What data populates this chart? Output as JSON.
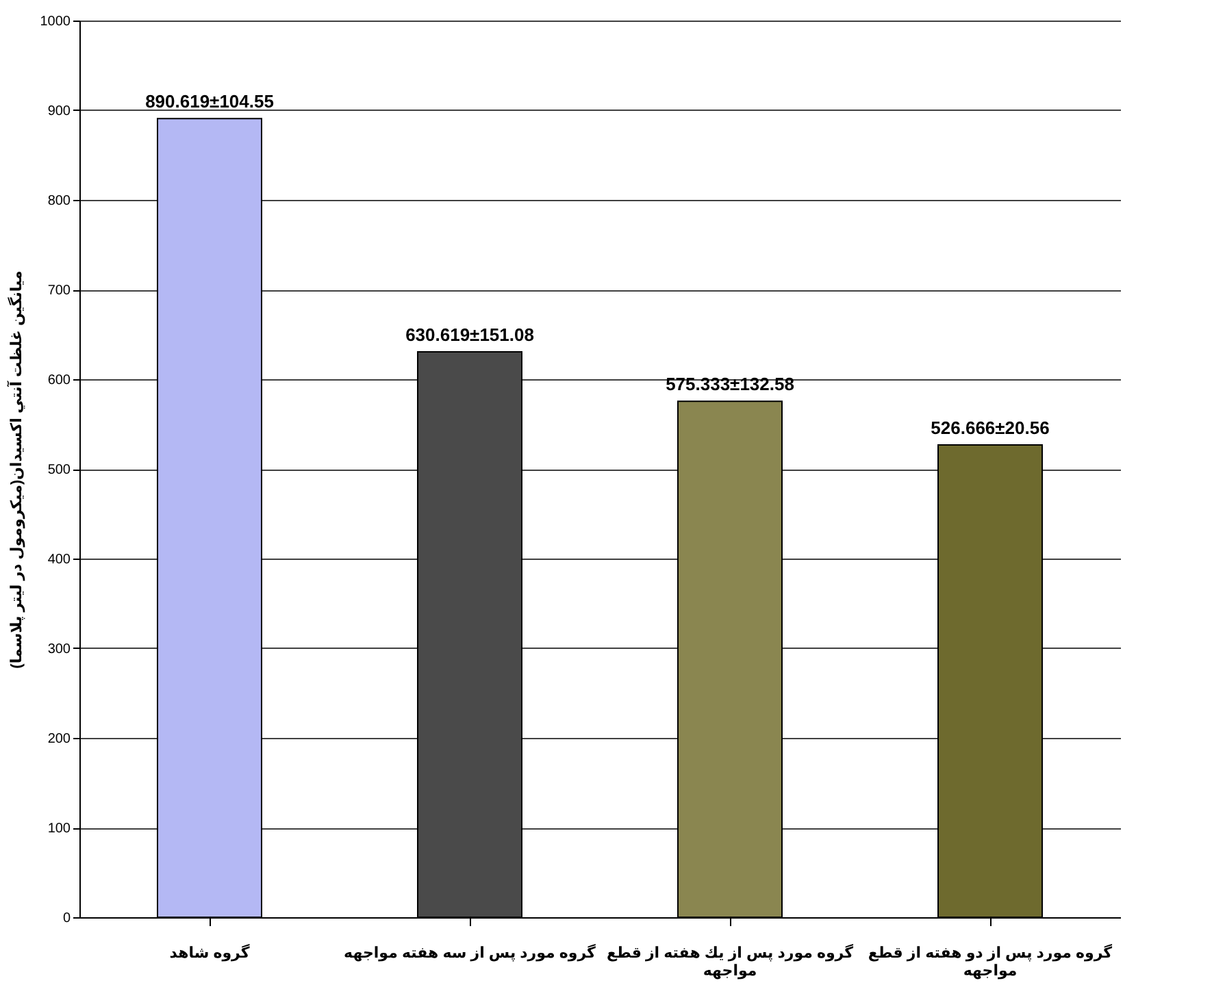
{
  "chart_data": {
    "type": "bar",
    "ylabel": "میانگین غلظت آنتي اکسيدان(میکرومول در لیتر پلاسما)",
    "categories": [
      "گروه شاهد",
      "گروه مورد پس از سه هفته مواجهه",
      "گروه مورد پس از يك هفته از قطع مواجهه",
      "گروه مورد پس از دو هفته از قطع مواجهه"
    ],
    "values": [
      890.619,
      630.619,
      575.333,
      526.666
    ],
    "value_labels": [
      "890.619±104.55",
      "630.619±151.08",
      "575.333±132.58",
      "526.666±20.56"
    ],
    "colors": [
      "#b4b8f4",
      "#4a4a4a",
      "#8a8650",
      "#6e6a2e"
    ],
    "ylim": [
      0,
      1000
    ],
    "yticks": [
      0,
      100,
      200,
      300,
      400,
      500,
      600,
      700,
      800,
      900,
      1000
    ],
    "grid": "y"
  }
}
